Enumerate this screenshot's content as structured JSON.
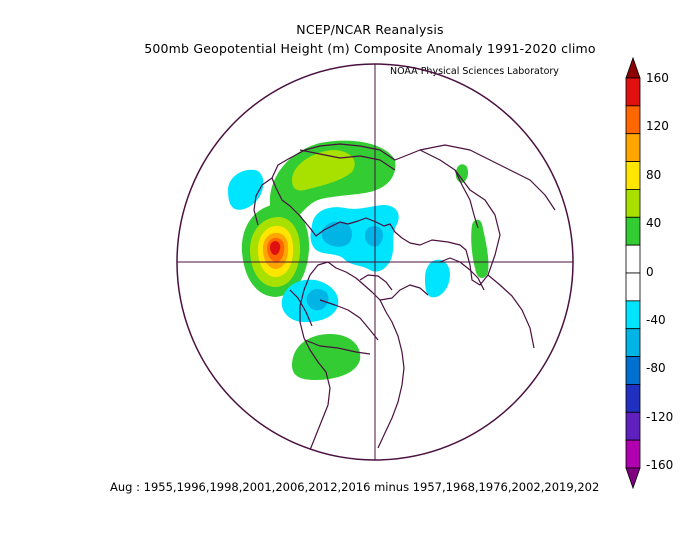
{
  "header": {
    "title": "NCEP/NCAR Reanalysis",
    "subtitle": "500mb Geopotential Height (m) Composite Anomaly 1991-2020 climo",
    "credit": "NOAA Physical Sciences Laboratory"
  },
  "footer": {
    "caption": "Aug : 1955,1996,1998,2001,2006,2012,2016 minus 1957,1968,1976,2002,2019,202"
  },
  "colorbar": {
    "labels": [
      "160",
      "120",
      "80",
      "40",
      "0",
      "-40",
      "-80",
      "-120",
      "-160"
    ],
    "bands": [
      "#8b0000",
      "#e01010",
      "#ff6600",
      "#ffa500",
      "#ffe600",
      "#a8e000",
      "#33cc33",
      "#ffffff",
      "#ffffff",
      "#00e5ff",
      "#00b4e6",
      "#0070d0",
      "#2030c0",
      "#6020c0",
      "#b000b0",
      "#800080"
    ]
  },
  "colors": {
    "coast": "#4a1040",
    "warm": [
      "#33cc33",
      "#a8e000",
      "#ffe600",
      "#ffa500",
      "#ff6600",
      "#e01010"
    ],
    "cold": [
      "#00e5ff",
      "#00b4e6"
    ]
  }
}
